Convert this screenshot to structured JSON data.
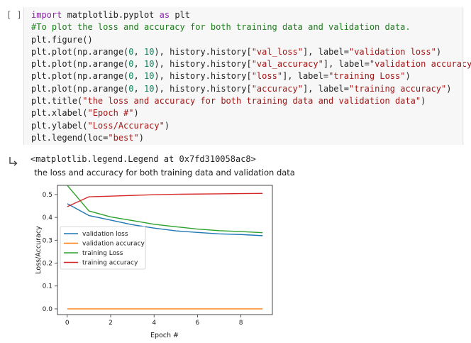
{
  "cell": {
    "prompt": "[ ]",
    "code_lines": [
      [
        {
          "t": "import",
          "c": "kw"
        },
        {
          "t": " matplotlib.pyplot ",
          "c": ""
        },
        {
          "t": "as",
          "c": "kw"
        },
        {
          "t": " plt",
          "c": ""
        }
      ],
      [
        {
          "t": "#To plot the loss and accuracy for both training data and validation data.",
          "c": "cm"
        }
      ],
      [
        {
          "t": "plt.figure()",
          "c": ""
        }
      ],
      [
        {
          "t": "plt.plot(np.arange(",
          "c": ""
        },
        {
          "t": "0",
          "c": "nm"
        },
        {
          "t": ", ",
          "c": ""
        },
        {
          "t": "10",
          "c": "nm"
        },
        {
          "t": "), history.history[",
          "c": ""
        },
        {
          "t": "\"val_loss\"",
          "c": "st"
        },
        {
          "t": "], label=",
          "c": ""
        },
        {
          "t": "\"validation loss\"",
          "c": "st"
        },
        {
          "t": ")",
          "c": ""
        }
      ],
      [
        {
          "t": "plt.plot(np.arange(",
          "c": ""
        },
        {
          "t": "0",
          "c": "nm"
        },
        {
          "t": ", ",
          "c": ""
        },
        {
          "t": "10",
          "c": "nm"
        },
        {
          "t": "), history.history[",
          "c": ""
        },
        {
          "t": "\"val_accuracy\"",
          "c": "st"
        },
        {
          "t": "], label=",
          "c": ""
        },
        {
          "t": "\"validation accuracy\"",
          "c": "st"
        },
        {
          "t": ")",
          "c": ""
        }
      ],
      [
        {
          "t": "plt.plot(np.arange(",
          "c": ""
        },
        {
          "t": "0",
          "c": "nm"
        },
        {
          "t": ", ",
          "c": ""
        },
        {
          "t": "10",
          "c": "nm"
        },
        {
          "t": "), history.history[",
          "c": ""
        },
        {
          "t": "\"loss\"",
          "c": "st"
        },
        {
          "t": "], label=",
          "c": ""
        },
        {
          "t": "\"training Loss\"",
          "c": "st"
        },
        {
          "t": ")",
          "c": ""
        }
      ],
      [
        {
          "t": "plt.plot(np.arange(",
          "c": ""
        },
        {
          "t": "0",
          "c": "nm"
        },
        {
          "t": ", ",
          "c": ""
        },
        {
          "t": "10",
          "c": "nm"
        },
        {
          "t": "), history.history[",
          "c": ""
        },
        {
          "t": "\"accuracy\"",
          "c": "st"
        },
        {
          "t": "], label=",
          "c": ""
        },
        {
          "t": "\"training accuracy\"",
          "c": "st"
        },
        {
          "t": ")",
          "c": ""
        }
      ],
      [
        {
          "t": "plt.title(",
          "c": ""
        },
        {
          "t": "\"the loss and accuracy for both training data and validation data\"",
          "c": "st"
        },
        {
          "t": ")",
          "c": ""
        }
      ],
      [
        {
          "t": "plt.xlabel(",
          "c": ""
        },
        {
          "t": "\"Epoch #\"",
          "c": "st"
        },
        {
          "t": ")",
          "c": ""
        }
      ],
      [
        {
          "t": "plt.ylabel(",
          "c": ""
        },
        {
          "t": "\"Loss/Accuracy\"",
          "c": "st"
        },
        {
          "t": ")",
          "c": ""
        }
      ],
      [
        {
          "t": "plt.legend(loc=",
          "c": ""
        },
        {
          "t": "\"best\"",
          "c": "st"
        },
        {
          "t": ")",
          "c": ""
        }
      ]
    ]
  },
  "output": {
    "text": "<matplotlib.legend.Legend at 0x7fd310058ac8>"
  },
  "colors": {
    "validation_loss": "#1f77b4",
    "validation_accuracy": "#ff7f0e",
    "training_loss": "#2ca02c",
    "training_accuracy": "#d62728"
  },
  "chart_data": {
    "type": "line",
    "title": "the loss and accuracy for both training data and validation data",
    "xlabel": "Epoch #",
    "ylabel": "Loss/Accuracy",
    "xlim": [
      -0.45,
      9.45
    ],
    "ylim": [
      -0.025,
      0.54
    ],
    "xticks": [
      0,
      2,
      4,
      6,
      8
    ],
    "yticks": [
      0.0,
      0.1,
      0.2,
      0.3,
      0.4,
      0.5
    ],
    "ytick_labels": [
      "0.0",
      "0.1",
      "0.2",
      "0.3",
      "0.4",
      "0.5"
    ],
    "legend_loc": "center-left",
    "grid": false,
    "x": [
      0,
      1,
      2,
      3,
      4,
      5,
      6,
      7,
      8,
      9
    ],
    "series": [
      {
        "name": "validation loss",
        "color_key": "validation_loss",
        "values": [
          0.46,
          0.408,
          0.388,
          0.368,
          0.353,
          0.341,
          0.334,
          0.328,
          0.325,
          0.32
        ]
      },
      {
        "name": "validation accuracy",
        "color_key": "validation_accuracy",
        "values": [
          0.0,
          0.0,
          0.0,
          0.0,
          0.0,
          0.0,
          0.0,
          0.0,
          0.0,
          0.0
        ]
      },
      {
        "name": "training Loss",
        "color_key": "training_loss",
        "values": [
          0.54,
          0.428,
          0.402,
          0.386,
          0.37,
          0.359,
          0.349,
          0.342,
          0.338,
          0.333
        ]
      },
      {
        "name": "training accuracy",
        "color_key": "training_accuracy",
        "values": [
          0.447,
          0.49,
          0.493,
          0.496,
          0.499,
          0.501,
          0.502,
          0.503,
          0.504,
          0.505
        ]
      }
    ]
  }
}
